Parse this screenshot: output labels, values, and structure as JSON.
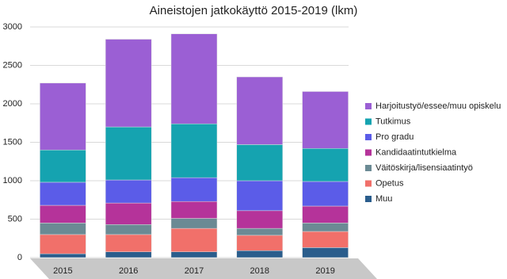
{
  "chart_data": {
    "type": "stacked-bar",
    "title": "Aineistojen jatkokäyttö 2015-2019 (lkm)",
    "categories": [
      "2015",
      "2016",
      "2017",
      "2018",
      "2019"
    ],
    "series": [
      {
        "name": "Muu",
        "color": "#2a5d8c",
        "values": [
          50,
          75,
          75,
          90,
          130
        ]
      },
      {
        "name": "Opetus",
        "color": "#f1706a",
        "values": [
          250,
          225,
          305,
          200,
          210
        ]
      },
      {
        "name": "Väitöskirja/lisensiaatintyö",
        "color": "#6b8a94",
        "values": [
          150,
          130,
          130,
          90,
          110
        ]
      },
      {
        "name": "Kandidaatintutkielma",
        "color": "#b5339a",
        "values": [
          230,
          280,
          220,
          230,
          220
        ]
      },
      {
        "name": "Pro gradu",
        "color": "#5b5ce8",
        "values": [
          300,
          300,
          310,
          390,
          320
        ]
      },
      {
        "name": "Tutkimus",
        "color": "#15a3b0",
        "values": [
          420,
          690,
          700,
          470,
          430
        ]
      },
      {
        "name": "Harjoitustyö/essee/muu opiskelu",
        "color": "#9b5fd4",
        "values": [
          870,
          1140,
          1170,
          880,
          740
        ]
      }
    ],
    "ylim": [
      0,
      3000
    ],
    "yticks": [
      0,
      500,
      1000,
      1500,
      2000,
      2500,
      3000
    ],
    "grid": true,
    "legend": "right"
  }
}
